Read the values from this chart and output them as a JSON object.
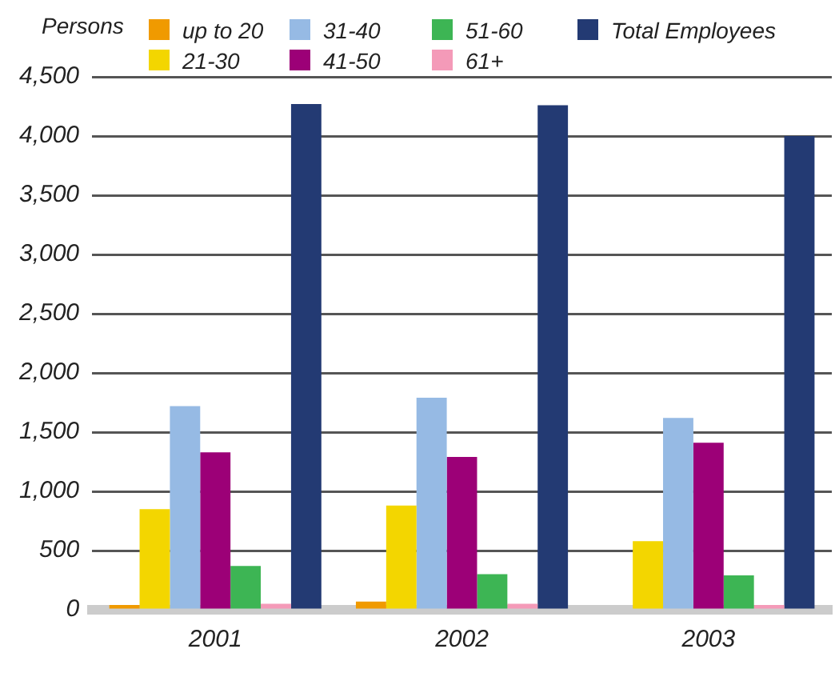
{
  "chart_data": {
    "type": "bar",
    "ylabel": "Persons",
    "categories": [
      "2001",
      "2002",
      "2003"
    ],
    "series": [
      {
        "name": "up to 20",
        "color": "#f09a00",
        "values": [
          40,
          70,
          0
        ]
      },
      {
        "name": "21-30",
        "color": "#f3d600",
        "values": [
          850,
          880,
          580
        ]
      },
      {
        "name": "31-40",
        "color": "#96bae4",
        "values": [
          1720,
          1790,
          1620
        ]
      },
      {
        "name": "41-50",
        "color": "#9c0077",
        "values": [
          1330,
          1290,
          1410
        ]
      },
      {
        "name": "51-60",
        "color": "#3db554",
        "values": [
          370,
          300,
          290
        ]
      },
      {
        "name": "61+",
        "color": "#f49ab8",
        "values": [
          50,
          50,
          40
        ]
      },
      {
        "name": "Total Employees",
        "color": "#233a73",
        "values": [
          4270,
          4260,
          4000
        ]
      }
    ],
    "ylim": [
      0,
      4500
    ],
    "yticks": [
      0,
      500,
      {
        "value": 1000,
        "label": "1,000"
      },
      {
        "value": 1500,
        "label": "1,500"
      },
      {
        "value": 2000,
        "label": "2,000"
      },
      {
        "value": 2500,
        "label": "2,500"
      },
      {
        "value": 3000,
        "label": "3,000"
      },
      {
        "value": 3500,
        "label": "3,500"
      },
      {
        "value": 4000,
        "label": "4,000"
      },
      {
        "value": 4500,
        "label": "4,500"
      }
    ],
    "grid": "y",
    "legend": "top"
  }
}
